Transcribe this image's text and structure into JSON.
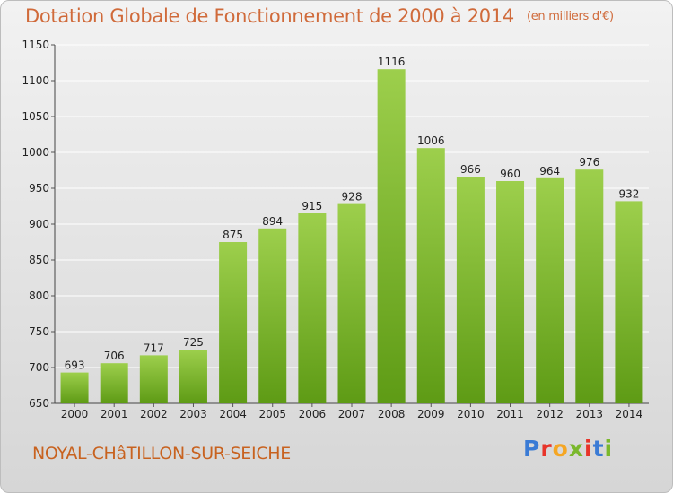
{
  "header": {
    "title": "Dotation Globale de Fonctionnement de 2000 à 2014",
    "unit": "(en milliers d'€)"
  },
  "footer": {
    "commune": "NOYAL-CHâTILLON-SUR-SEICHE",
    "logo": "Proxiti",
    "logo_colors": [
      "#3a7bd5",
      "#e8342a",
      "#f5a623",
      "#7ab82c",
      "#e8342a",
      "#3a7bd5",
      "#7ab82c"
    ]
  },
  "colors": {
    "bar_top": "#9dcf4c",
    "bar_bottom": "#5e9b15",
    "grid": "#ffffff",
    "title": "#d06a3a"
  },
  "chart_data": {
    "type": "bar",
    "title": "Dotation Globale de Fonctionnement de 2000 à 2014",
    "subtitle": "(en milliers d'€)",
    "xlabel": "",
    "ylabel": "",
    "categories": [
      "2000",
      "2001",
      "2002",
      "2003",
      "2004",
      "2005",
      "2006",
      "2007",
      "2008",
      "2009",
      "2010",
      "2011",
      "2012",
      "2013",
      "2014"
    ],
    "values": [
      693,
      706,
      717,
      725,
      875,
      894,
      915,
      928,
      1116,
      1006,
      966,
      960,
      964,
      976,
      932
    ],
    "ylim": [
      650,
      1150
    ],
    "yticks": [
      650,
      700,
      750,
      800,
      850,
      900,
      950,
      1000,
      1050,
      1100,
      1150
    ],
    "grid": true,
    "legend": "none"
  }
}
